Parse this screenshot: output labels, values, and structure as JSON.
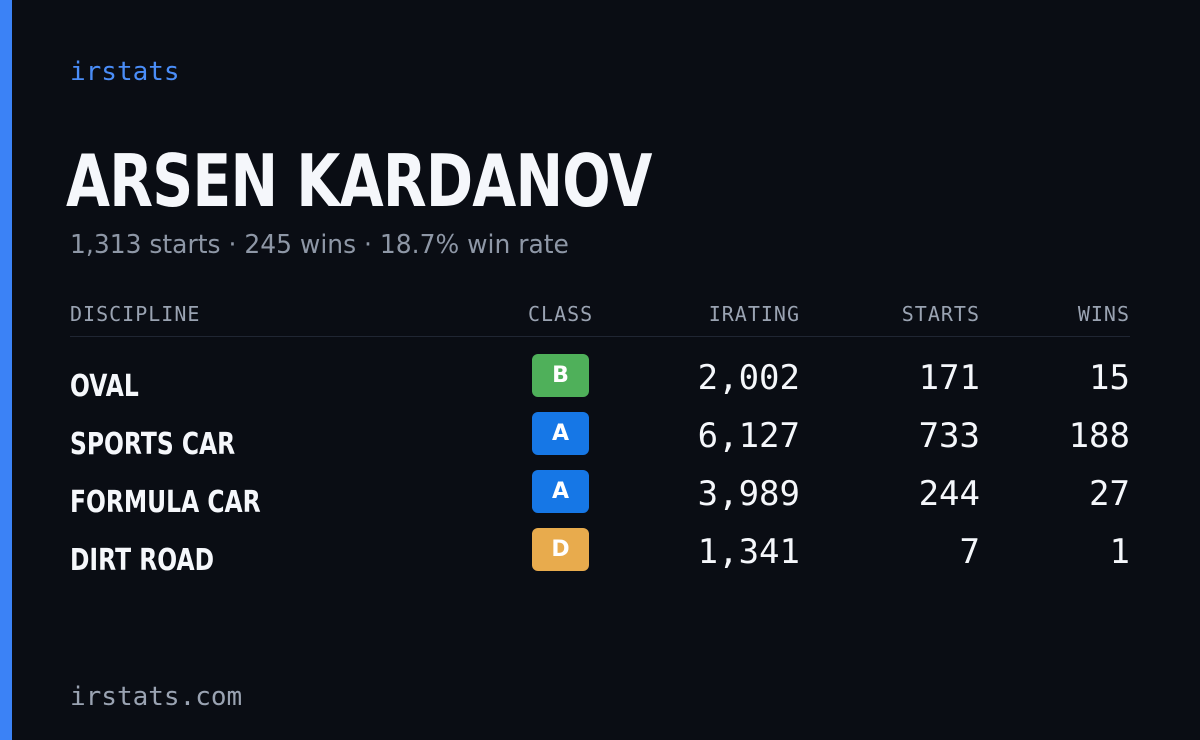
{
  "brand": "irstats",
  "player": {
    "name": "ARSEN KARDANOV",
    "summary": "1,313 starts · 245 wins · 18.7% win rate"
  },
  "table": {
    "headers": {
      "discipline": "DISCIPLINE",
      "class": "CLASS",
      "irating": "IRATING",
      "starts": "STARTS",
      "wins": "WINS"
    },
    "rows": [
      {
        "discipline": "OVAL",
        "class": "B",
        "class_color": "#4fb05a",
        "irating": "2,002",
        "starts": "171",
        "wins": "15"
      },
      {
        "discipline": "SPORTS CAR",
        "class": "A",
        "class_color": "#1677e6",
        "irating": "6,127",
        "starts": "733",
        "wins": "188"
      },
      {
        "discipline": "FORMULA CAR",
        "class": "A",
        "class_color": "#1677e6",
        "irating": "3,989",
        "starts": "244",
        "wins": "27"
      },
      {
        "discipline": "DIRT ROAD",
        "class": "D",
        "class_color": "#e8ab4d",
        "irating": "1,341",
        "starts": "7",
        "wins": "1"
      }
    ]
  },
  "footer": "irstats.com",
  "colors": {
    "background": "#0a0d14",
    "accent": "#3b82f6"
  }
}
